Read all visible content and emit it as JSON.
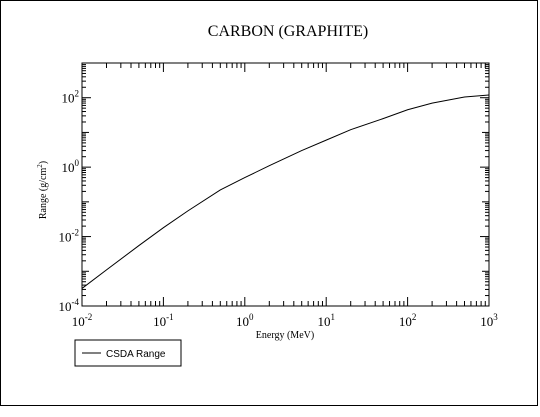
{
  "chart_data": {
    "type": "line",
    "title": "CARBON (GRAPHITE)",
    "xlabel": "Energy (MeV)",
    "ylabel": {
      "prefix": "Range (g/cm",
      "sup": "2",
      "suffix": ")"
    },
    "x_scale": "log",
    "y_scale": "log",
    "xlim": [
      0.01,
      1000
    ],
    "ylim": [
      0.0001,
      1000
    ],
    "x_ticks": [
      {
        "base": "10",
        "exp": "-2"
      },
      {
        "base": "10",
        "exp": "-1"
      },
      {
        "base": "10",
        "exp": "0"
      },
      {
        "base": "10",
        "exp": "1"
      },
      {
        "base": "10",
        "exp": "2"
      },
      {
        "base": "10",
        "exp": "3"
      }
    ],
    "y_ticks": [
      {
        "base": "10",
        "exp": "-4"
      },
      {
        "base": "10",
        "exp": "-2"
      },
      {
        "base": "10",
        "exp": "0"
      },
      {
        "base": "10",
        "exp": "2"
      }
    ],
    "grid": false,
    "legend": {
      "placement": "bottom-left",
      "entries": [
        "CSDA Range"
      ]
    },
    "series": [
      {
        "name": "CSDA Range",
        "color": "#000000",
        "x": [
          0.01,
          0.02,
          0.05,
          0.1,
          0.2,
          0.5,
          1,
          2,
          5,
          10,
          20,
          50,
          100,
          200,
          500,
          1000
        ],
        "y": [
          0.00032,
          0.0011,
          0.0055,
          0.018,
          0.055,
          0.22,
          0.5,
          1.1,
          3.0,
          6.0,
          12,
          25,
          45,
          70,
          105,
          120
        ]
      }
    ]
  }
}
